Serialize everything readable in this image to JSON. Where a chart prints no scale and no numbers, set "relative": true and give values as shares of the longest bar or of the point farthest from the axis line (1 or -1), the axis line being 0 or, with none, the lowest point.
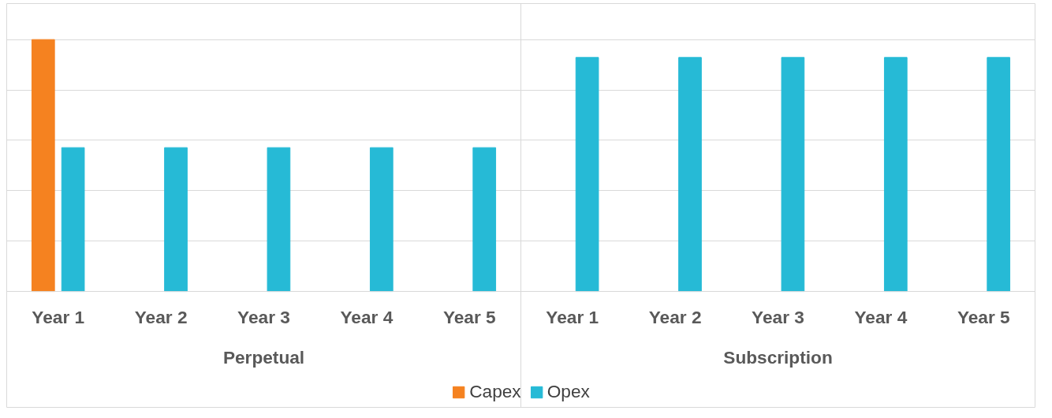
{
  "chart_data": {
    "type": "bar",
    "relative": true,
    "categories": [
      "Year 1",
      "Year 2",
      "Year 3",
      "Year 4",
      "Year 5",
      "Year 1",
      "Year 2",
      "Year 3",
      "Year 4",
      "Year 5"
    ],
    "annotations": [
      "Perpetual",
      "Subscription"
    ],
    "series": [
      {
        "name": "Capex",
        "color": "#f58220",
        "values": [
          1,
          null,
          null,
          null,
          null,
          null,
          null,
          null,
          null,
          null
        ]
      },
      {
        "name": "Opex",
        "color": "#26bad6",
        "values": [
          0.571,
          0.571,
          0.571,
          0.571,
          0.571,
          0.929,
          0.929,
          0.929,
          0.929,
          0.929
        ]
      }
    ],
    "grid": "y",
    "legend": "bottom"
  }
}
